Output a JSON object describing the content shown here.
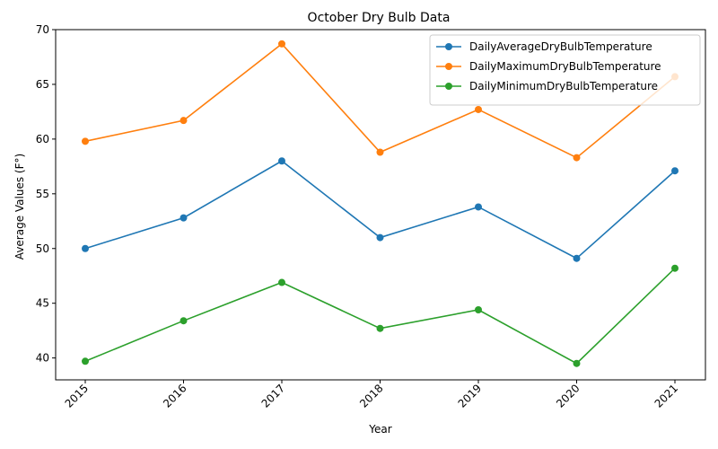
{
  "chart_data": {
    "type": "line",
    "title": "October Dry Bulb Data",
    "xlabel": "Year",
    "ylabel": "Average Values (F°)",
    "categories": [
      "2015",
      "2016",
      "2017",
      "2018",
      "2019",
      "2020",
      "2021"
    ],
    "ylim": [
      38,
      70
    ],
    "yticks": [
      40,
      45,
      50,
      55,
      60,
      65,
      70
    ],
    "grid": false,
    "legend_position": "top-right",
    "series": [
      {
        "name": "DailyAverageDryBulbTemperature",
        "color": "#1f77b4",
        "values": [
          50.0,
          52.8,
          58.0,
          51.0,
          53.8,
          49.1,
          57.1
        ]
      },
      {
        "name": "DailyMaximumDryBulbTemperature",
        "color": "#ff7f0e",
        "values": [
          59.8,
          61.7,
          68.7,
          58.8,
          62.7,
          58.3,
          65.7
        ]
      },
      {
        "name": "DailyMinimumDryBulbTemperature",
        "color": "#2ca02c",
        "values": [
          39.7,
          43.4,
          46.9,
          42.7,
          44.4,
          39.5,
          48.2
        ]
      }
    ]
  }
}
